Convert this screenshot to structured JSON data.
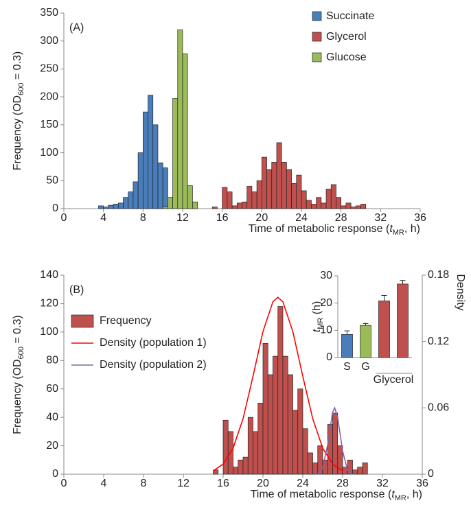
{
  "chart_data": [
    {
      "type": "histogram",
      "panel_label": "(A)",
      "ylabel": [
        {
          "text": "Frequency (OD"
        },
        {
          "text": "600",
          "style": "sub"
        },
        {
          "text": " = 0.3)"
        }
      ],
      "xlabel": [
        {
          "text": "Time of metabolic response ("
        },
        {
          "text": "t",
          "style": "italic"
        },
        {
          "text": "MR",
          "style": "sub"
        },
        {
          "text": ", h)"
        }
      ],
      "xlim": [
        0,
        36
      ],
      "xticks": [
        0,
        4,
        8,
        12,
        16,
        20,
        24,
        28,
        32,
        36
      ],
      "ylim": [
        0,
        350
      ],
      "yticks": [
        0,
        50,
        100,
        150,
        200,
        250,
        300,
        350
      ],
      "legend": "upper right",
      "series": [
        {
          "name": "Succinate",
          "color": "#4a7ebb",
          "bins": [
            3.5,
            4,
            4.5,
            5,
            5.5,
            6,
            6.5,
            7,
            7.5,
            8,
            8.5,
            9,
            9.5,
            10,
            10.5
          ],
          "values": [
            5,
            3,
            6,
            8,
            10,
            20,
            30,
            48,
            100,
            173,
            203,
            150,
            82,
            73
          ]
        },
        {
          "name": "Glycerol",
          "color": "#c0504d",
          "bins": [
            15,
            15.5,
            16,
            16.5,
            17,
            17.5,
            18,
            18.5,
            19,
            19.5,
            20,
            20.5,
            21,
            21.5,
            22,
            22.5,
            23,
            23.5,
            24,
            24.5,
            25,
            25.5,
            26,
            26.5,
            27,
            27.5,
            28,
            28.5,
            29,
            29.5,
            30,
            30.5
          ],
          "values": [
            3,
            0,
            38,
            30,
            5,
            10,
            12,
            40,
            30,
            50,
            92,
            70,
            83,
            118,
            83,
            70,
            45,
            60,
            32,
            15,
            8,
            20,
            10,
            35,
            43,
            20,
            5,
            10,
            3,
            5,
            8
          ]
        },
        {
          "name": "Glucose",
          "color": "#9bbb59",
          "bins": [
            10,
            10.5,
            11,
            11.5,
            12,
            12.5,
            13,
            13.5
          ],
          "values": [
            3,
            20,
            197,
            320,
            277,
            41,
            12
          ]
        }
      ]
    },
    {
      "type": "histogram",
      "panel_label": "(B)",
      "ylabel": [
        {
          "text": "Frequency (OD"
        },
        {
          "text": "600",
          "style": "sub"
        },
        {
          "text": " = 0.3)"
        }
      ],
      "xlabel": [
        {
          "text": "Time of metabolic response ("
        },
        {
          "text": "t",
          "style": "italic"
        },
        {
          "text": "MR",
          "style": "sub"
        },
        {
          "text": ", h)"
        }
      ],
      "y2label": "Density",
      "xlim": [
        0,
        36
      ],
      "xticks": [
        0,
        4,
        8,
        12,
        16,
        20,
        24,
        28,
        32,
        36
      ],
      "ylim": [
        0,
        140
      ],
      "yticks": [
        0,
        20,
        40,
        60,
        80,
        100,
        120,
        140
      ],
      "y2lim": [
        0,
        0.18
      ],
      "y2ticks": [
        0,
        0.06,
        0.12,
        0.18
      ],
      "legend": "upper left",
      "series": [
        {
          "name": "Frequency",
          "color": "#c0504d",
          "bins": [
            15,
            15.5,
            16,
            16.5,
            17,
            17.5,
            18,
            18.5,
            19,
            19.5,
            20,
            20.5,
            21,
            21.5,
            22,
            22.5,
            23,
            23.5,
            24,
            24.5,
            25,
            25.5,
            26,
            26.5,
            27,
            27.5,
            28,
            28.5,
            29,
            29.5,
            30,
            30.5
          ],
          "values": [
            3,
            0,
            38,
            30,
            5,
            10,
            12,
            40,
            30,
            50,
            92,
            70,
            83,
            118,
            83,
            70,
            45,
            60,
            32,
            15,
            8,
            20,
            10,
            35,
            43,
            20,
            5,
            10,
            3,
            5,
            8
          ]
        },
        {
          "name": "Density (population 1)",
          "color": "#ff0000",
          "axis": "y2",
          "x": [
            15,
            16,
            17,
            18,
            19,
            20,
            21,
            21.5,
            22,
            23,
            24,
            25,
            26,
            27,
            28
          ],
          "values": [
            0.0029,
            0.0092,
            0.0236,
            0.0502,
            0.0886,
            0.129,
            0.156,
            0.16,
            0.156,
            0.129,
            0.0886,
            0.0502,
            0.0236,
            0.0092,
            0.0029
          ]
        },
        {
          "name": "Density (population 2)",
          "color": "#8064a2",
          "axis": "y2",
          "x": [
            25.5,
            26,
            26.5,
            27,
            27.2,
            27.5,
            28,
            28.5,
            29
          ],
          "values": [
            0.0005,
            0.0056,
            0.0267,
            0.0562,
            0.06,
            0.0517,
            0.0208,
            0.0037,
            0.0003
          ]
        }
      ]
    },
    {
      "type": "bar",
      "ylabel": [
        {
          "text": "t",
          "style": "italic"
        },
        {
          "text": "MR",
          "style": "sub"
        },
        {
          "text": " (h)"
        }
      ],
      "categories": [
        "S",
        "G",
        null,
        null
      ],
      "group_label": "Glycerol",
      "values": [
        8.5,
        11.8,
        20.8,
        27
      ],
      "errors": [
        1.3,
        0.7,
        2,
        1.3
      ],
      "colors": [
        "#4a7ebb",
        "#9bbb59",
        "#c0504d",
        "#c0504d"
      ],
      "ylim": [
        0,
        30
      ],
      "yticks": [
        0,
        10,
        20,
        30
      ]
    }
  ]
}
